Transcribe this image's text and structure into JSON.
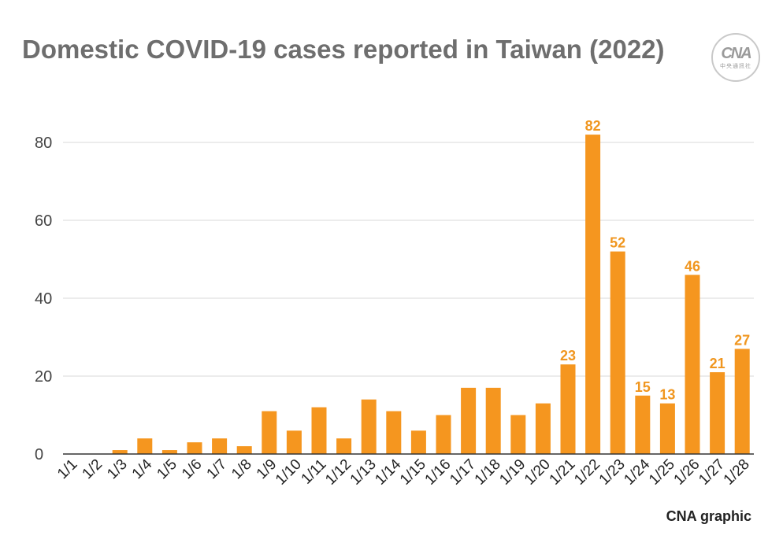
{
  "title": "Domestic COVID-19 cases reported in Taiwan (2022)",
  "logo": {
    "mark": "CNA",
    "subtitle": "中央通訊社"
  },
  "source": "CNA graphic",
  "colors": {
    "bar": "#f5961f",
    "label": "#f0961f",
    "grid": "#d9d9d9",
    "axis": "#333333",
    "title": "#6e6e6e"
  },
  "chart_data": {
    "type": "bar",
    "title": "Domestic COVID-19 cases reported in Taiwan (2022)",
    "xlabel": "",
    "ylabel": "",
    "ylim": [
      0,
      80
    ],
    "yticks": [
      0,
      20,
      40,
      60,
      80
    ],
    "grid": true,
    "categories": [
      "1/1",
      "1/2",
      "1/3",
      "1/4",
      "1/5",
      "1/6",
      "1/7",
      "1/8",
      "1/9",
      "1/10",
      "1/11",
      "1/12",
      "1/13",
      "1/14",
      "1/15",
      "1/16",
      "1/17",
      "1/18",
      "1/19",
      "1/20",
      "1/21",
      "1/22",
      "1/23",
      "1/24",
      "1/25",
      "1/26",
      "1/27",
      "1/28"
    ],
    "values": [
      0,
      0,
      1,
      4,
      1,
      3,
      4,
      2,
      11,
      6,
      12,
      4,
      14,
      11,
      6,
      10,
      17,
      17,
      10,
      13,
      23,
      82,
      52,
      15,
      13,
      46,
      21,
      27
    ],
    "data_labels": [
      {
        "category": "1/21",
        "text": "23"
      },
      {
        "category": "1/22",
        "text": "82"
      },
      {
        "category": "1/23",
        "text": "52"
      },
      {
        "category": "1/24",
        "text": "15"
      },
      {
        "category": "1/25",
        "text": "13"
      },
      {
        "category": "1/26",
        "text": "46"
      },
      {
        "category": "1/27",
        "text": "21"
      },
      {
        "category": "1/28",
        "text": "27"
      }
    ]
  }
}
